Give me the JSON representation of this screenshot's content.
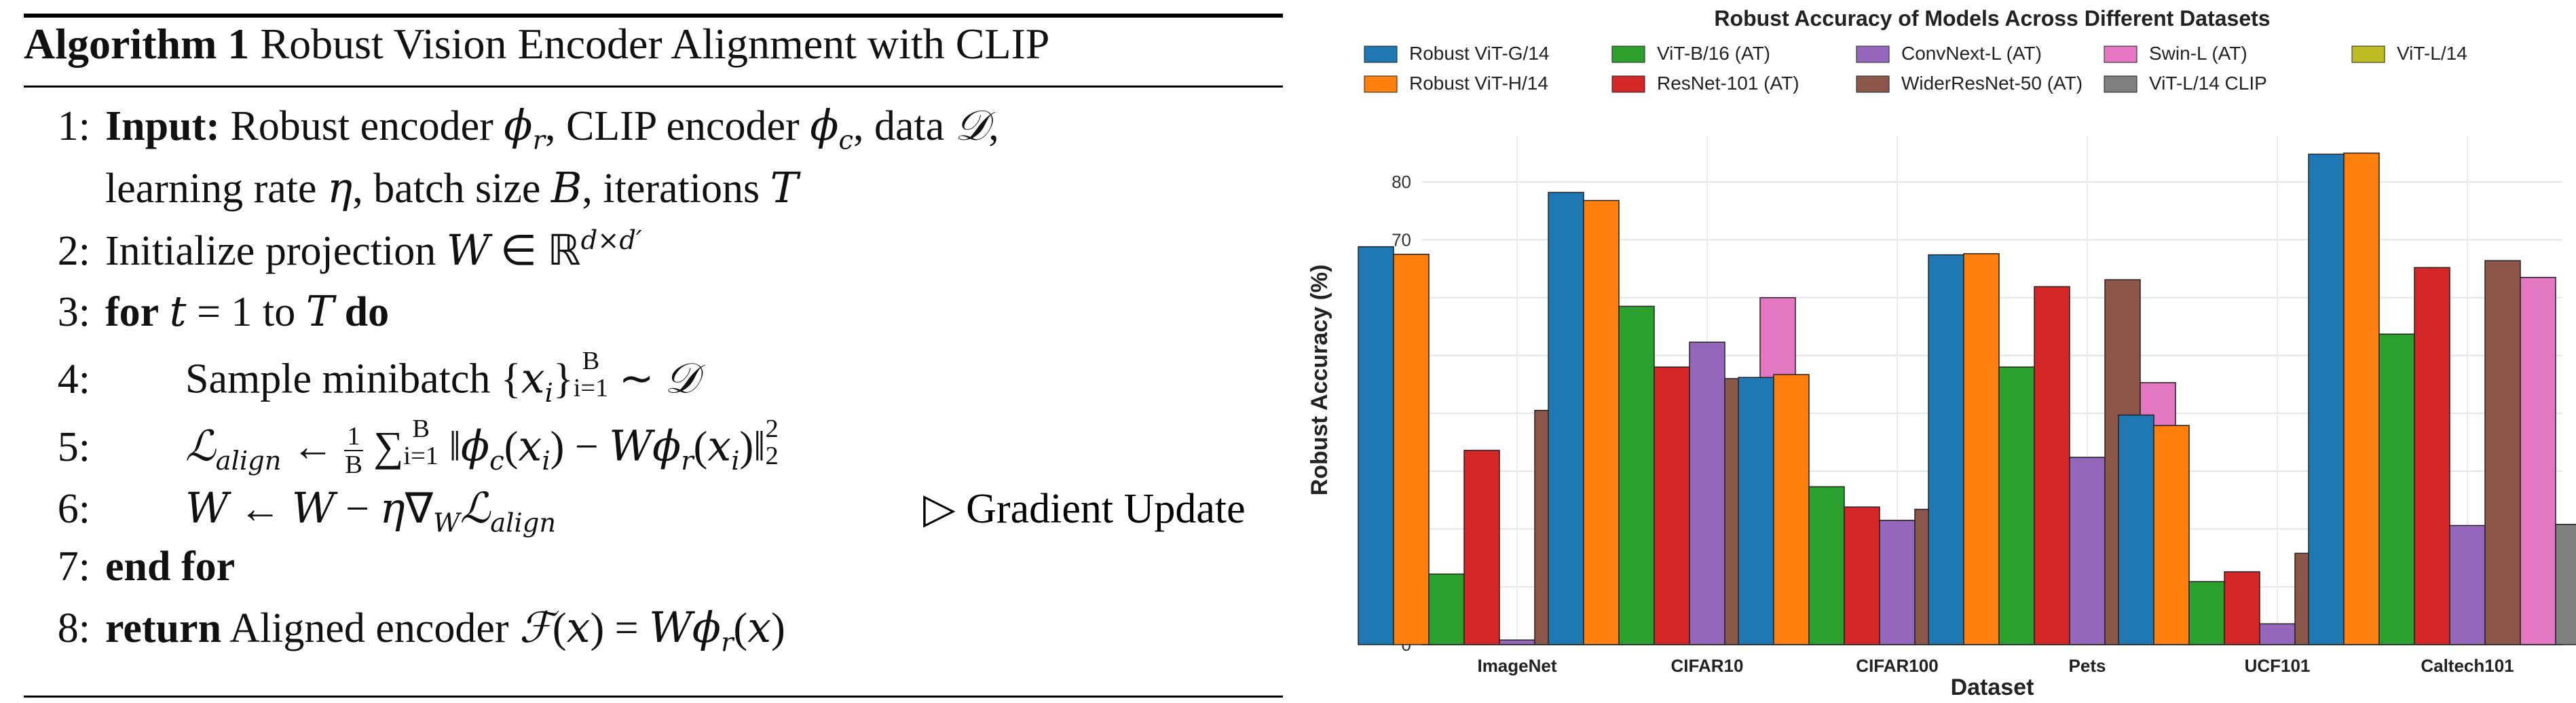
{
  "algorithm": {
    "number_label": "Algorithm 1",
    "title": "Robust Vision Encoder Alignment with CLIP",
    "lines": [
      {
        "n": "1:",
        "parts": [
          [
            "kw",
            "Input:"
          ],
          [
            "t",
            " Robust encoder "
          ],
          [
            "m",
            "ϕ"
          ],
          [
            "sub",
            "r"
          ],
          [
            "t",
            ", CLIP encoder "
          ],
          [
            "m",
            "ϕ"
          ],
          [
            "sub",
            "c"
          ],
          [
            "t",
            ", data "
          ],
          [
            "cal",
            "𝒟"
          ],
          [
            "t",
            ","
          ]
        ]
      },
      {
        "n": "",
        "parts": [
          [
            "t",
            "learning rate "
          ],
          [
            "m",
            "η"
          ],
          [
            "t",
            ", batch size "
          ],
          [
            "m",
            "B"
          ],
          [
            "t",
            ", iterations "
          ],
          [
            "m",
            "T"
          ]
        ]
      },
      {
        "n": "2:",
        "parts": [
          [
            "t",
            "Initialize projection "
          ],
          [
            "m",
            "W"
          ],
          [
            "t",
            " ∈ ℝ"
          ],
          [
            "sup",
            "d×d′"
          ]
        ]
      },
      {
        "n": "3:",
        "parts": [
          [
            "kw",
            "for"
          ],
          [
            "t",
            " "
          ],
          [
            "m",
            "t"
          ],
          [
            "t",
            " = 1 to "
          ],
          [
            "m",
            "T"
          ],
          [
            "t",
            " "
          ],
          [
            "kw",
            "do"
          ]
        ]
      },
      {
        "n": "4:",
        "indent": true,
        "parts": [
          [
            "t",
            "Sample minibatch {"
          ],
          [
            "m",
            "x"
          ],
          [
            "sub",
            "i"
          ],
          [
            "t",
            "}"
          ],
          [
            "supsub",
            "B|i=1"
          ],
          [
            "t",
            " ∼ "
          ],
          [
            "cal",
            "𝒟"
          ]
        ]
      },
      {
        "n": "5:",
        "indent": true,
        "parts": [
          [
            "cal",
            "ℒ"
          ],
          [
            "sub",
            "align"
          ],
          [
            "t",
            " ← "
          ],
          [
            "frac",
            "1|B"
          ],
          [
            "t",
            " ∑"
          ],
          [
            "supsub",
            "B|i=1"
          ],
          [
            "t",
            " ‖"
          ],
          [
            "m",
            "ϕ"
          ],
          [
            "sub",
            "c"
          ],
          [
            "t",
            "("
          ],
          [
            "m",
            "x"
          ],
          [
            "sub",
            "i"
          ],
          [
            "t",
            ") − "
          ],
          [
            "m",
            "Wϕ"
          ],
          [
            "sub",
            "r"
          ],
          [
            "t",
            "("
          ],
          [
            "m",
            "x"
          ],
          [
            "sub",
            "i"
          ],
          [
            "t",
            ")‖"
          ],
          [
            "supsub",
            "2|2"
          ]
        ]
      },
      {
        "n": "6:",
        "indent": true,
        "comment": "▷ Gradient Update",
        "parts": [
          [
            "m",
            "W"
          ],
          [
            "t",
            " ← "
          ],
          [
            "m",
            "W"
          ],
          [
            "t",
            " − "
          ],
          [
            "m",
            "η"
          ],
          [
            "t",
            "∇"
          ],
          [
            "sub",
            "W"
          ],
          [
            "cal",
            "ℒ"
          ],
          [
            "sub",
            "align"
          ]
        ]
      },
      {
        "n": "7:",
        "parts": [
          [
            "kw",
            "end for"
          ]
        ]
      },
      {
        "n": "8:",
        "parts": [
          [
            "kw",
            "return"
          ],
          [
            "t",
            " Aligned encoder "
          ],
          [
            "cal",
            "ℱ"
          ],
          [
            "t",
            "("
          ],
          [
            "m",
            "x"
          ],
          [
            "t",
            ") = "
          ],
          [
            "m",
            "Wϕ"
          ],
          [
            "sub",
            "r"
          ],
          [
            "t",
            "("
          ],
          [
            "m",
            "x"
          ],
          [
            "t",
            ")"
          ]
        ]
      }
    ]
  },
  "chart_data": {
    "type": "bar",
    "title": "Robust Accuracy of Models Across Different Datasets",
    "xlabel": "Dataset",
    "ylabel": "Robust Accuracy (%)",
    "ylim": [
      0,
      88
    ],
    "yticks": [
      0,
      10,
      20,
      30,
      40,
      50,
      60,
      70,
      80
    ],
    "grid": true,
    "legend_position": "top",
    "categories": [
      "ImageNet",
      "CIFAR10",
      "CIFAR100",
      "Pets",
      "UCF101",
      "Caltech101"
    ],
    "series": [
      {
        "name": "Robust ViT-G/14",
        "color": "#1f77b4",
        "values": [
          68.8,
          78.2,
          46.2,
          67.4,
          39.7,
          84.8
        ]
      },
      {
        "name": "Robust ViT-H/14",
        "color": "#ff7f0e",
        "values": [
          67.5,
          76.8,
          46.7,
          67.6,
          37.9,
          85.0
        ]
      },
      {
        "name": "ViT-B/16 (AT)",
        "color": "#2ca02c",
        "values": [
          12.2,
          58.5,
          27.3,
          48.0,
          10.9,
          53.7
        ]
      },
      {
        "name": "ResNet-101 (AT)",
        "color": "#d62728",
        "values": [
          33.6,
          48.0,
          23.8,
          61.9,
          12.6,
          65.2
        ]
      },
      {
        "name": "ConvNext-L (AT)",
        "color": "#9467bd",
        "values": [
          0.8,
          52.3,
          21.5,
          32.4,
          3.6,
          20.6
        ]
      },
      {
        "name": "WiderResNet-50 (AT)",
        "color": "#8c564b",
        "values": [
          40.5,
          46.0,
          23.4,
          63.1,
          15.8,
          66.4
        ]
      },
      {
        "name": "Swin-L (AT)",
        "color": "#e377c2",
        "values": [
          7.2,
          60.0,
          30.8,
          45.3,
          10.1,
          63.5
        ]
      },
      {
        "name": "ViT-L/14 CLIP",
        "color": "#7f7f7f",
        "values": [
          3.0,
          4.4,
          1.6,
          3.6,
          2.5,
          20.8
        ]
      },
      {
        "name": "ViT-L/14",
        "color": "#bcbd22",
        "values": [
          0.2,
          0.1,
          0.1,
          0.2,
          0.1,
          1.0
        ]
      }
    ]
  }
}
